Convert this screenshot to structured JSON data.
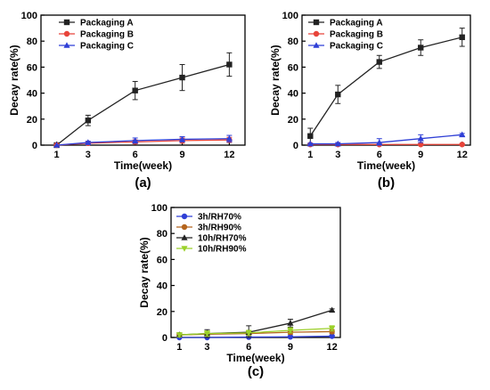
{
  "chart_data": [
    {
      "type": "line",
      "panel_label": "(a)",
      "xlabel": "Time(week)",
      "ylabel": "Decay rate(%)",
      "x": [
        1,
        3,
        6,
        9,
        12
      ],
      "xticks": [
        "1",
        "3",
        "6",
        "9",
        "12"
      ],
      "xlim": [
        0,
        13
      ],
      "ylim": [
        0,
        100
      ],
      "yticks": [
        "0",
        "20",
        "40",
        "60",
        "80",
        "100"
      ],
      "legend_position": "top-left",
      "grid": false,
      "series": [
        {
          "name": "Packaging A",
          "color": "#222222",
          "marker": "square",
          "values": [
            0,
            19,
            42,
            52,
            62
          ],
          "errors": [
            0,
            4,
            7,
            10,
            9
          ]
        },
        {
          "name": "Packaging B",
          "color": "#e8443a",
          "marker": "circle",
          "values": [
            0,
            1.5,
            2.5,
            3.5,
            4
          ],
          "errors": [
            0,
            1,
            1.5,
            2,
            2
          ]
        },
        {
          "name": "Packaging C",
          "color": "#2f3fd6",
          "marker": "triangle",
          "values": [
            0,
            2,
            3.5,
            4.5,
            5
          ],
          "errors": [
            0,
            1,
            2,
            2,
            2.5
          ]
        }
      ]
    },
    {
      "type": "line",
      "panel_label": "(b)",
      "xlabel": "Time(week)",
      "ylabel": "Decay rate(%)",
      "x": [
        1,
        3,
        6,
        9,
        12
      ],
      "xticks": [
        "1",
        "3",
        "6",
        "9",
        "12"
      ],
      "xlim": [
        0.4,
        12.6
      ],
      "ylim": [
        0,
        100
      ],
      "yticks": [
        "0",
        "20",
        "40",
        "60",
        "80",
        "100"
      ],
      "legend_position": "top-left",
      "grid": false,
      "series": [
        {
          "name": "Packaging A",
          "color": "#222222",
          "marker": "square",
          "values": [
            7,
            39,
            64,
            75,
            83
          ],
          "errors": [
            6,
            7,
            5,
            6,
            7
          ]
        },
        {
          "name": "Packaging B",
          "color": "#e8443a",
          "marker": "circle",
          "values": [
            0.5,
            0.5,
            0.5,
            0.5,
            0.5
          ],
          "errors": [
            0.3,
            0.3,
            0.3,
            0.3,
            0.3
          ]
        },
        {
          "name": "Packaging C",
          "color": "#2f3fd6",
          "marker": "triangle",
          "values": [
            1,
            1,
            2,
            5,
            8
          ],
          "errors": [
            0.5,
            1,
            3,
            3,
            1
          ]
        }
      ]
    },
    {
      "type": "line",
      "panel_label": "(c)",
      "xlabel": "Time(week)",
      "ylabel": "Decay rate(%)",
      "x": [
        1,
        3,
        6,
        9,
        12
      ],
      "xticks": [
        "1",
        "3",
        "6",
        "9",
        "12"
      ],
      "xlim": [
        0.4,
        12.6
      ],
      "ylim": [
        0,
        100
      ],
      "yticks": [
        "0",
        "20",
        "40",
        "60",
        "80",
        "100"
      ],
      "legend_position": "top-left",
      "grid": false,
      "series": [
        {
          "name": "3h/RH70%",
          "color": "#2f3fd6",
          "marker": "circle",
          "values": [
            0,
            0,
            0.3,
            0.5,
            1
          ],
          "errors": [
            0.3,
            0.3,
            0.5,
            0.5,
            0.5
          ]
        },
        {
          "name": "3h/RH90%",
          "color": "#b5651d",
          "marker": "circle",
          "values": [
            2,
            2.5,
            3,
            4,
            4.5
          ],
          "errors": [
            1,
            1,
            1.5,
            1.5,
            1.5
          ]
        },
        {
          "name": "10h/RH70%",
          "color": "#222222",
          "marker": "triangle",
          "values": [
            2,
            3,
            4,
            11,
            21
          ],
          "errors": [
            1.5,
            3,
            5,
            3,
            1
          ]
        },
        {
          "name": "10h/RH90%",
          "color": "#9bd12a",
          "marker": "triangle-down",
          "values": [
            2,
            3,
            3.5,
            5.5,
            7
          ],
          "errors": [
            1.5,
            2,
            2,
            2,
            2
          ]
        }
      ]
    }
  ]
}
